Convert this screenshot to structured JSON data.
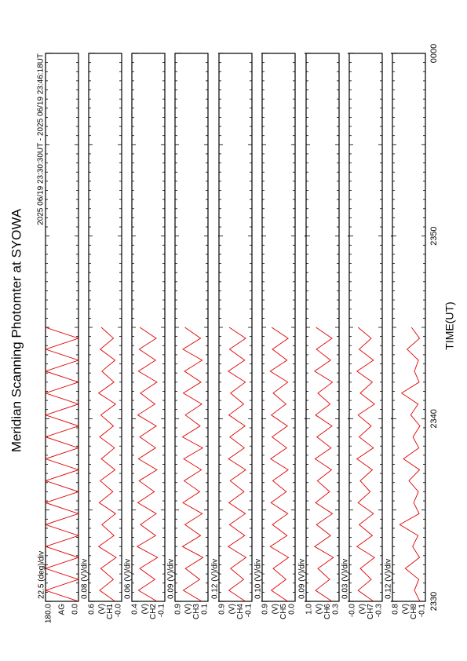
{
  "chart_data": {
    "type": "line",
    "title": "Meridian Scanning Photomter at SYOWA",
    "subtitle": "2025 06/19 23:30:30UT - 2025 06/19 23:46:18UT",
    "x_label": "TIME(UT)",
    "xlim": [
      0,
      30
    ],
    "xticks": [
      {
        "value": 0,
        "label": "2330"
      },
      {
        "value": 10,
        "label": "2340"
      },
      {
        "value": 20,
        "label": "2350"
      },
      {
        "value": 30,
        "label": "0000"
      }
    ],
    "x": [
      0,
      0.6,
      1.2,
      1.8,
      2.4,
      3,
      3.6,
      4.2,
      4.8,
      5.4,
      6,
      6.6,
      7.2,
      7.8,
      8.4,
      9,
      9.6,
      10.2,
      10.8,
      11.4,
      12,
      12.6,
      13.2,
      13.8,
      14.4,
      15
    ],
    "panels": [
      {
        "scale_label": "22.5 (deg)/div",
        "channel": "AG",
        "color": "#e00000",
        "ylim": [
          0,
          180
        ],
        "yticks": [
          {
            "value": 180,
            "label": "180.0"
          },
          {
            "value": 0,
            "label": "0.0"
          }
        ],
        "values": [
          0,
          180,
          0,
          180,
          0,
          180,
          0,
          180,
          0,
          180,
          0,
          180,
          0,
          180,
          0,
          180,
          0,
          180,
          0,
          180,
          0,
          180,
          0,
          180,
          0,
          180
        ]
      },
      {
        "scale_label": "0.08 (V)/div",
        "unit": "(V)",
        "channel": "CH1",
        "color": "#e00000",
        "ylim": [
          0,
          0.6
        ],
        "yticks": [
          0.6,
          {
            "value": 0,
            "label": "-0.0"
          }
        ],
        "values": [
          0.12,
          0.4,
          0.15,
          0.38,
          0.1,
          0.42,
          0.14,
          0.36,
          0.11,
          0.41,
          0.16,
          0.39,
          0.12,
          0.37,
          0.13,
          0.4,
          0.15,
          0.38,
          0.11,
          0.42,
          0.14,
          0.36,
          0.12,
          0.39,
          0.15,
          0.37
        ]
      },
      {
        "scale_label": "0.06 (V)/div",
        "unit": "(V)",
        "channel": "CH2",
        "color": "#e00000",
        "ylim": [
          -0.1,
          0.4
        ],
        "yticks": [
          0.4,
          -0.1
        ],
        "values": [
          0.02,
          0.3,
          0.05,
          0.28,
          0.01,
          0.32,
          0.04,
          0.27,
          0.03,
          0.31,
          0.06,
          0.29,
          0.02,
          0.3,
          0.04,
          0.28,
          0.03,
          0.31,
          0.05,
          0.27,
          0.02,
          0.3,
          0.04,
          0.29,
          0.03,
          0.28
        ]
      },
      {
        "scale_label": "0.09 (V)/div",
        "unit": "(V)",
        "channel": "CH3",
        "color": "#e00000",
        "ylim": [
          0.1,
          0.9
        ],
        "yticks": [
          0.9,
          0.1
        ],
        "values": [
          0.25,
          0.7,
          0.3,
          0.65,
          0.22,
          0.72,
          0.28,
          0.66,
          0.24,
          0.71,
          0.3,
          0.68,
          0.26,
          0.69,
          0.23,
          0.72,
          0.29,
          0.65,
          0.25,
          0.7,
          0.27,
          0.67,
          0.24,
          0.71,
          0.28,
          0.66
        ]
      },
      {
        "scale_label": "0.12 (V)/div",
        "unit": "(V)",
        "channel": "CH4",
        "color": "#e00000",
        "ylim": [
          -0.1,
          0.9
        ],
        "yticks": [
          0.9,
          -0.1
        ],
        "values": [
          0.1,
          0.6,
          0.15,
          0.55,
          0.08,
          0.62,
          0.12,
          0.58,
          0.1,
          0.6,
          0.14,
          0.56,
          0.09,
          0.61,
          0.13,
          0.57,
          0.11,
          0.6,
          0.15,
          0.55,
          0.1,
          0.62,
          0.12,
          0.58,
          0.09,
          0.59
        ]
      },
      {
        "scale_label": "0.10 (V)/div",
        "unit": "(V)",
        "channel": "CH5",
        "color": "#e00000",
        "ylim": [
          0,
          0.9
        ],
        "yticks": [
          0.9,
          {
            "value": 0,
            "label": "0.0"
          }
        ],
        "values": [
          0.2,
          0.65,
          0.25,
          0.6,
          0.18,
          0.68,
          0.22,
          0.62,
          0.2,
          0.66,
          0.24,
          0.61,
          0.19,
          0.67,
          0.23,
          0.63,
          0.21,
          0.65,
          0.25,
          0.6,
          0.2,
          0.68,
          0.22,
          0.62,
          0.19,
          0.64
        ]
      },
      {
        "scale_label": "0.09 (V)/div",
        "unit": "(V)",
        "channel": "CH6",
        "color": "#e00000",
        "ylim": [
          0.3,
          1.0
        ],
        "yticks": [
          {
            "value": 1,
            "label": "1.0"
          },
          0.3
        ],
        "values": [
          0.45,
          0.8,
          0.5,
          0.75,
          0.42,
          0.82,
          0.48,
          0.78,
          0.44,
          0.8,
          0.5,
          0.76,
          0.46,
          0.81,
          0.47,
          0.77,
          0.45,
          0.8,
          0.49,
          0.75,
          0.44,
          0.82,
          0.48,
          0.78,
          0.45,
          0.79
        ]
      },
      {
        "scale_label": "0.03 (V)/div",
        "unit": "(V)",
        "channel": "CH7",
        "color": "#e00000",
        "ylim": [
          -0.3,
          0
        ],
        "yticks": [
          {
            "value": 0,
            "label": "-0.0"
          },
          -0.3
        ],
        "values": [
          -0.22,
          -0.08,
          -0.2,
          -0.1,
          -0.23,
          -0.07,
          -0.21,
          -0.09,
          -0.22,
          -0.08,
          -0.19,
          -0.1,
          -0.21,
          -0.07,
          -0.22,
          -0.09,
          -0.2,
          -0.08,
          -0.23,
          -0.1,
          -0.21,
          -0.07,
          -0.22,
          -0.09,
          -0.2,
          -0.08
        ]
      },
      {
        "scale_label": "0.12 (V)/div",
        "unit": "(V)",
        "channel": "CH8",
        "color": "#e00000",
        "ylim": [
          -0.1,
          0.8
        ],
        "yticks": [
          0.8,
          -0.1
        ],
        "values": [
          0.05,
          0.2,
          0.08,
          0.45,
          0.06,
          0.25,
          0.1,
          0.6,
          0.07,
          0.22,
          0.09,
          0.35,
          0.06,
          0.5,
          0.08,
          0.24,
          0.05,
          0.3,
          0.1,
          0.55,
          0.07,
          0.2,
          0.09,
          0.4,
          0.06,
          0.28
        ]
      }
    ]
  }
}
